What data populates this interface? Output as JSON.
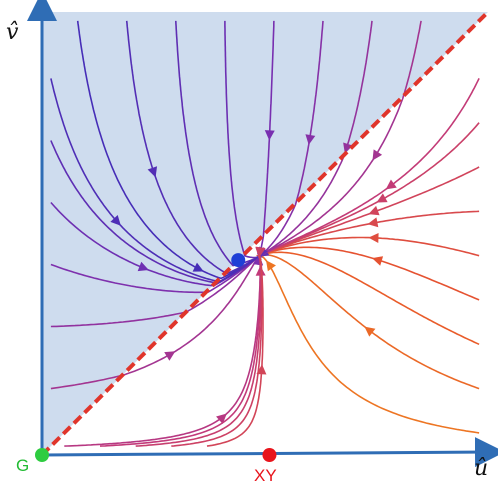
{
  "chart_data": {
    "type": "stream",
    "xlabel": "û",
    "ylabel": "v̂",
    "diagonal_line": {
      "color": "#e0352b",
      "style": "dashed",
      "relation": "v = u"
    },
    "shaded_region": {
      "region": "v > u",
      "color": "#c9d8ec"
    },
    "fixed_points": [
      {
        "name": "G",
        "u": 0.0,
        "v": 0.0,
        "color": "#2ecc40"
      },
      {
        "name": "XY",
        "u": 0.51,
        "v": 0.0,
        "color": "#e8141c"
      },
      {
        "name": "",
        "u": 0.44,
        "v": 0.44,
        "color": "#1f3fd6"
      }
    ],
    "color_scale": [
      "#3b2db8",
      "#7a2fb0",
      "#c23a7a",
      "#e8542c",
      "#f39a1a"
    ],
    "xlim": [
      0,
      1
    ],
    "ylim": [
      0,
      1
    ]
  },
  "labels": {
    "x_axis": "û",
    "y_axis": "v̂",
    "point_g": "G",
    "point_xy": "XY"
  },
  "colors": {
    "axis": "#2f6db5",
    "point_g_label": "#22bb33",
    "point_xy_label": "#e8141c"
  }
}
